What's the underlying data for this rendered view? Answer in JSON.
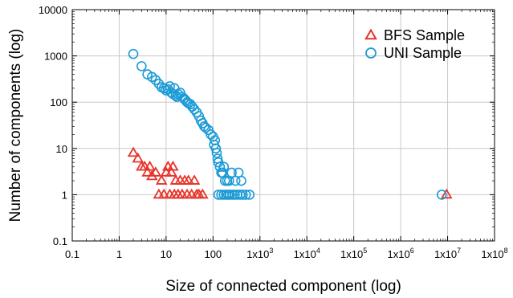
{
  "chart_data": {
    "type": "scatter",
    "xscale": "log",
    "yscale": "log",
    "xlim": [
      0.1,
      100000000
    ],
    "ylim": [
      0.1,
      10000
    ],
    "grid": true,
    "legend_position": "top-right",
    "xlabel": "Size of connected component (log)",
    "ylabel": "Number of components (log)",
    "x_ticks": [
      {
        "value": 0.1,
        "label": "0.1"
      },
      {
        "value": 1,
        "label": "1"
      },
      {
        "value": 10,
        "label": "10"
      },
      {
        "value": 100,
        "label": "100"
      },
      {
        "value": 1000,
        "label": "1x10",
        "exp": "3"
      },
      {
        "value": 10000,
        "label": "1x10",
        "exp": "4"
      },
      {
        "value": 100000,
        "label": "1x10",
        "exp": "5"
      },
      {
        "value": 1000000,
        "label": "1x10",
        "exp": "6"
      },
      {
        "value": 10000000,
        "label": "1x10",
        "exp": "7"
      },
      {
        "value": 100000000,
        "label": "1x10",
        "exp": "8"
      }
    ],
    "y_ticks": [
      {
        "value": 0.1,
        "label": "0.1"
      },
      {
        "value": 1,
        "label": "1"
      },
      {
        "value": 10,
        "label": "10"
      },
      {
        "value": 100,
        "label": "100"
      },
      {
        "value": 1000,
        "label": "1000"
      },
      {
        "value": 10000,
        "label": "10000"
      }
    ],
    "series": [
      {
        "name": "BFS Sample",
        "marker": "triangle",
        "color": "#e8332a",
        "points": [
          [
            2,
            8
          ],
          [
            2.5,
            6
          ],
          [
            3,
            4
          ],
          [
            3.5,
            4
          ],
          [
            4,
            3
          ],
          [
            4.5,
            4
          ],
          [
            5,
            2.5
          ],
          [
            6,
            3
          ],
          [
            7,
            1
          ],
          [
            8,
            2
          ],
          [
            9,
            1
          ],
          [
            10,
            3
          ],
          [
            11,
            4
          ],
          [
            12,
            1
          ],
          [
            13,
            3
          ],
          [
            14,
            4
          ],
          [
            15,
            1
          ],
          [
            16,
            2
          ],
          [
            18,
            1
          ],
          [
            20,
            2
          ],
          [
            22,
            1
          ],
          [
            25,
            2
          ],
          [
            28,
            1
          ],
          [
            30,
            2
          ],
          [
            35,
            1
          ],
          [
            40,
            2
          ],
          [
            45,
            1
          ],
          [
            50,
            1
          ],
          [
            60,
            1
          ],
          [
            9500000,
            1
          ]
        ]
      },
      {
        "name": "UNI Sample",
        "marker": "circle",
        "color": "#1a9ad6",
        "points": [
          [
            2,
            1100
          ],
          [
            3,
            600
          ],
          [
            4,
            400
          ],
          [
            5,
            350
          ],
          [
            6,
            300
          ],
          [
            7,
            250
          ],
          [
            8,
            210
          ],
          [
            9,
            200
          ],
          [
            10,
            180
          ],
          [
            11,
            190
          ],
          [
            12,
            220
          ],
          [
            13,
            160
          ],
          [
            14,
            150
          ],
          [
            15,
            200
          ],
          [
            16,
            140
          ],
          [
            17,
            130
          ],
          [
            18,
            150
          ],
          [
            20,
            160
          ],
          [
            22,
            130
          ],
          [
            24,
            120
          ],
          [
            26,
            110
          ],
          [
            28,
            100
          ],
          [
            30,
            95
          ],
          [
            33,
            90
          ],
          [
            36,
            80
          ],
          [
            40,
            70
          ],
          [
            45,
            60
          ],
          [
            50,
            50
          ],
          [
            55,
            40
          ],
          [
            60,
            35
          ],
          [
            65,
            30
          ],
          [
            70,
            28
          ],
          [
            80,
            25
          ],
          [
            90,
            20
          ],
          [
            100,
            18
          ],
          [
            105,
            12
          ],
          [
            110,
            15
          ],
          [
            115,
            10
          ],
          [
            120,
            8
          ],
          [
            125,
            6
          ],
          [
            130,
            5
          ],
          [
            140,
            4
          ],
          [
            150,
            3
          ],
          [
            160,
            3
          ],
          [
            170,
            4
          ],
          [
            180,
            2
          ],
          [
            200,
            2
          ],
          [
            220,
            2
          ],
          [
            250,
            3
          ],
          [
            300,
            2
          ],
          [
            350,
            3
          ],
          [
            400,
            2
          ],
          [
            130,
            1
          ],
          [
            150,
            1
          ],
          [
            170,
            1
          ],
          [
            190,
            1
          ],
          [
            210,
            1
          ],
          [
            230,
            1
          ],
          [
            260,
            1
          ],
          [
            290,
            1
          ],
          [
            330,
            1
          ],
          [
            380,
            1
          ],
          [
            430,
            1
          ],
          [
            500,
            1
          ],
          [
            600,
            1
          ],
          [
            7500000,
            1
          ]
        ]
      }
    ]
  }
}
